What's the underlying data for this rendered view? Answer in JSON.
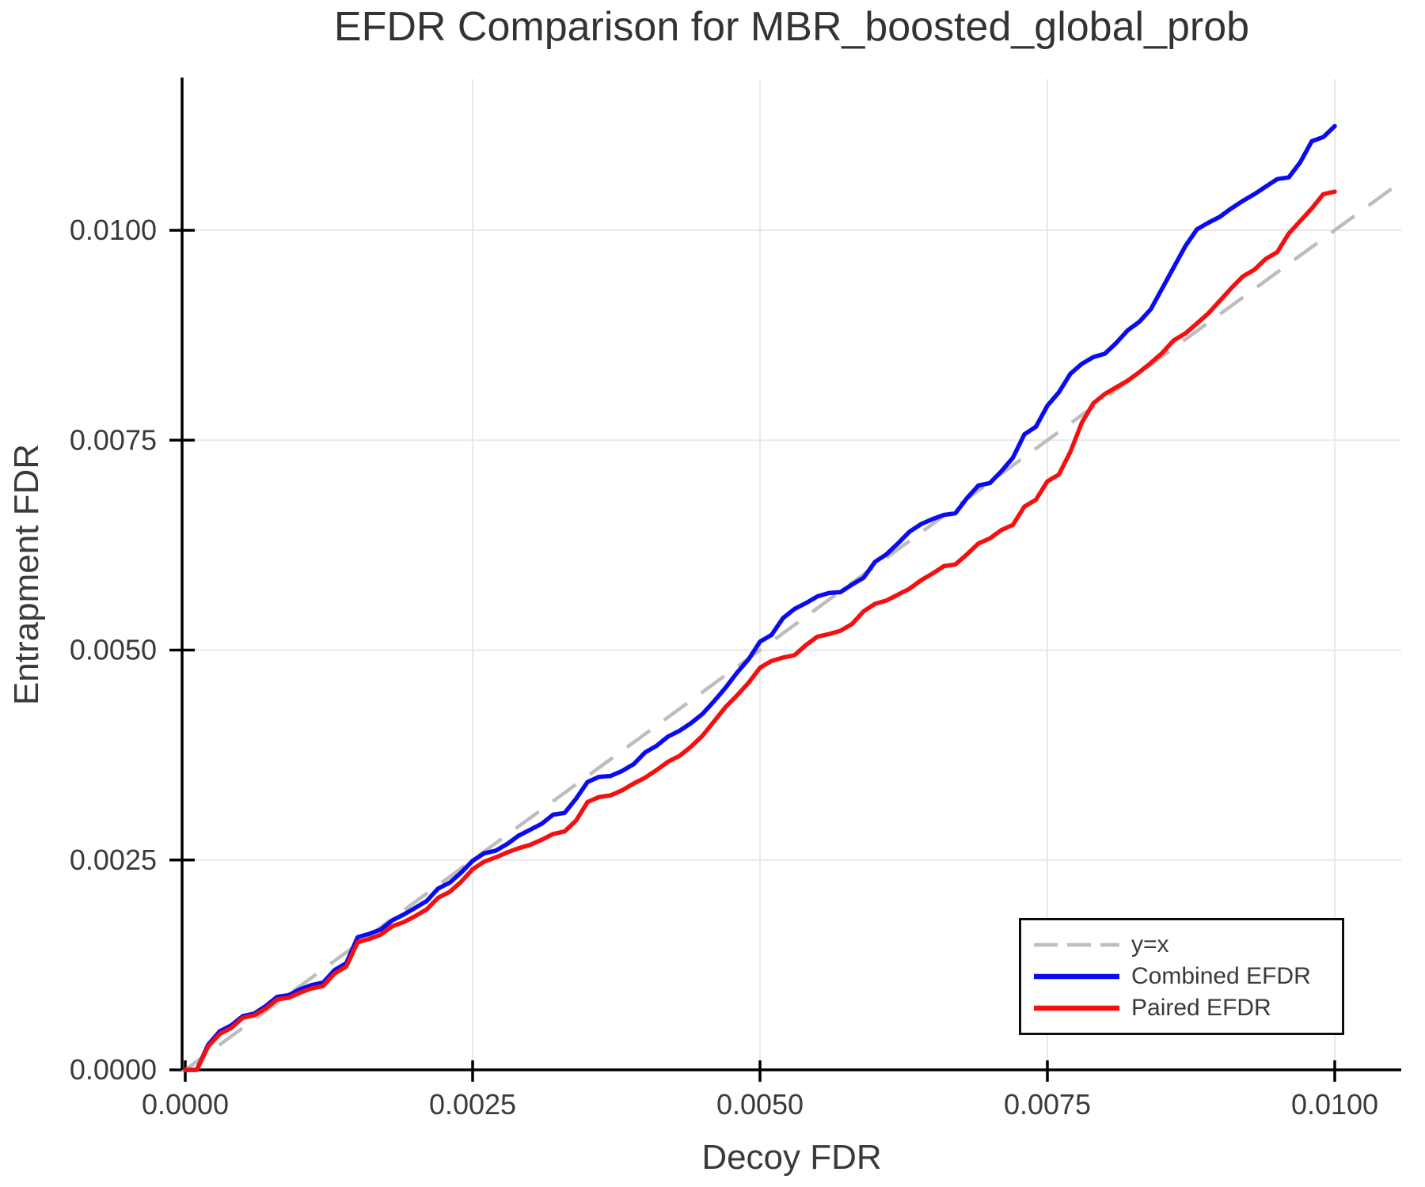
{
  "chart_data": {
    "type": "line",
    "title": "EFDR Comparison for MBR_boosted_global_prob",
    "xlabel": "Decoy FDR",
    "ylabel": "Entrapment FDR",
    "xlim": [
      -2.75e-05,
      0.010578
    ],
    "ylim": [
      0,
      0.0118
    ],
    "grid": true,
    "colors": {
      "grid": "#e8e8e8",
      "axis": "#000000",
      "text": "#3a3a3a",
      "background": "#ffffff"
    },
    "x_ticks": {
      "values": [
        0,
        0.0025,
        0.005,
        0.0075,
        0.01
      ],
      "labels": [
        "0.0000",
        "0.0025",
        "0.0050",
        "0.0075",
        "0.0100"
      ]
    },
    "y_ticks": {
      "values": [
        0,
        0.0025,
        0.005,
        0.0075,
        0.01
      ],
      "labels": [
        "0.0000",
        "0.0025",
        "0.0050",
        "0.0075",
        "0.0100"
      ]
    },
    "legend": {
      "position": "bottom-right",
      "entries": [
        {
          "label": "y=x",
          "color": "#bdbdbd",
          "dash": true
        },
        {
          "label": "Combined EFDR",
          "color": "#0b0bf2",
          "dash": false
        },
        {
          "label": "Paired EFDR",
          "color": "#f50f0f",
          "dash": false
        }
      ]
    },
    "reference_line": {
      "label": "y=x",
      "color": "#bdbdbd",
      "dash": true,
      "x1": -2.75e-05,
      "y1": -2.75e-05,
      "x2": 0.010578,
      "y2": 0.010578
    },
    "series": [
      {
        "name": "Combined EFDR",
        "color": "#0b0bf2",
        "x": [
          0,
          0.0001,
          0.0002,
          0.0003,
          0.0004,
          0.0005,
          0.0006,
          0.0007,
          0.0008,
          0.0009,
          0.001,
          0.0011,
          0.0012,
          0.0013,
          0.0014,
          0.0015,
          0.0016,
          0.0017,
          0.0018,
          0.0019,
          0.002,
          0.0021,
          0.0022,
          0.0023,
          0.0024,
          0.0025,
          0.0026,
          0.0027,
          0.0028,
          0.0029,
          0.003,
          0.0031,
          0.0032,
          0.0033,
          0.0034,
          0.0035,
          0.0036,
          0.0037,
          0.0038,
          0.0039,
          0.004,
          0.0041,
          0.0042,
          0.0043,
          0.0044,
          0.0045,
          0.0046,
          0.0047,
          0.0048,
          0.0049,
          0.005,
          0.0051,
          0.0052,
          0.0053,
          0.0054,
          0.0055,
          0.0056,
          0.0057,
          0.0058,
          0.0059,
          0.006,
          0.0061,
          0.0062,
          0.0063,
          0.0064,
          0.0065,
          0.0066,
          0.0067,
          0.0068,
          0.0069,
          0.007,
          0.0071,
          0.0072,
          0.0073,
          0.0074,
          0.0075,
          0.0076,
          0.0077,
          0.0078,
          0.0079,
          0.008,
          0.0081,
          0.0082,
          0.0083,
          0.0084,
          0.0085,
          0.0086,
          0.0087,
          0.0088,
          0.0089,
          0.009,
          0.0091,
          0.0092,
          0.0093,
          0.0094,
          0.0095,
          0.0096,
          0.0097,
          0.0098,
          0.0099,
          0.01
        ],
        "y": [
          0,
          0,
          0.0003,
          0.00046,
          0.00053,
          0.00064,
          0.00067,
          0.00076,
          0.00087,
          0.00089,
          0.00096,
          0.00101,
          0.00104,
          0.00119,
          0.00127,
          0.00158,
          0.00162,
          0.00167,
          0.00178,
          0.00185,
          0.00193,
          0.00201,
          0.00216,
          0.00223,
          0.00235,
          0.00249,
          0.00258,
          0.00261,
          0.00269,
          0.00279,
          0.00286,
          0.00293,
          0.00304,
          0.00306,
          0.00323,
          0.00343,
          0.00349,
          0.0035,
          0.00356,
          0.00364,
          0.00378,
          0.00386,
          0.00397,
          0.00404,
          0.00413,
          0.00424,
          0.00439,
          0.00455,
          0.00473,
          0.00489,
          0.0051,
          0.00518,
          0.00538,
          0.00549,
          0.00556,
          0.00564,
          0.00568,
          0.00569,
          0.00578,
          0.00586,
          0.00605,
          0.00614,
          0.00627,
          0.00641,
          0.0065,
          0.00656,
          0.00661,
          0.00663,
          0.00681,
          0.00696,
          0.00699,
          0.00713,
          0.00729,
          0.00757,
          0.00766,
          0.00791,
          0.00807,
          0.00829,
          0.00841,
          0.00849,
          0.00853,
          0.00866,
          0.00881,
          0.00891,
          0.00906,
          0.00931,
          0.00956,
          0.00981,
          0.01001,
          0.01009,
          0.01016,
          0.01026,
          0.01035,
          0.01043,
          0.01052,
          0.01061,
          0.01063,
          0.01081,
          0.01106,
          0.01111,
          0.01124
        ]
      },
      {
        "name": "Paired EFDR",
        "color": "#f50f0f",
        "x": [
          0,
          0.0001,
          0.0002,
          0.0003,
          0.0004,
          0.0005,
          0.0006,
          0.0007,
          0.0008,
          0.0009,
          0.001,
          0.0011,
          0.0012,
          0.0013,
          0.0014,
          0.0015,
          0.0016,
          0.0017,
          0.0018,
          0.0019,
          0.002,
          0.0021,
          0.0022,
          0.0023,
          0.0024,
          0.0025,
          0.0026,
          0.0027,
          0.0028,
          0.0029,
          0.003,
          0.0031,
          0.0032,
          0.0033,
          0.0034,
          0.0035,
          0.0036,
          0.0037,
          0.0038,
          0.0039,
          0.004,
          0.0041,
          0.0042,
          0.0043,
          0.0044,
          0.0045,
          0.0046,
          0.0047,
          0.0048,
          0.0049,
          0.005,
          0.0051,
          0.0052,
          0.0053,
          0.0054,
          0.0055,
          0.0056,
          0.0057,
          0.0058,
          0.0059,
          0.006,
          0.0061,
          0.0062,
          0.0063,
          0.0064,
          0.0065,
          0.0066,
          0.0067,
          0.0068,
          0.0069,
          0.007,
          0.0071,
          0.0072,
          0.0073,
          0.0074,
          0.0075,
          0.0076,
          0.0077,
          0.0078,
          0.0079,
          0.008,
          0.0081,
          0.0082,
          0.0083,
          0.0084,
          0.0085,
          0.0086,
          0.0087,
          0.0088,
          0.0089,
          0.009,
          0.0091,
          0.0092,
          0.0093,
          0.0094,
          0.0095,
          0.0096,
          0.0097,
          0.0098,
          0.0099,
          0.01
        ],
        "y": [
          0,
          0,
          0.00028,
          0.00043,
          0.0005,
          0.00062,
          0.00065,
          0.00073,
          0.00084,
          0.00086,
          0.00092,
          0.00097,
          0.001,
          0.00115,
          0.00123,
          0.00152,
          0.00156,
          0.00161,
          0.00171,
          0.00176,
          0.00183,
          0.00191,
          0.00205,
          0.00212,
          0.00224,
          0.00239,
          0.00248,
          0.00253,
          0.00259,
          0.00264,
          0.00268,
          0.00274,
          0.00281,
          0.00284,
          0.00297,
          0.00319,
          0.00325,
          0.00327,
          0.00333,
          0.00341,
          0.00348,
          0.00357,
          0.00367,
          0.00374,
          0.00385,
          0.00398,
          0.00415,
          0.00432,
          0.00446,
          0.00461,
          0.00479,
          0.00487,
          0.00491,
          0.00494,
          0.00506,
          0.00516,
          0.00519,
          0.00523,
          0.00531,
          0.00546,
          0.00555,
          0.00559,
          0.00566,
          0.00573,
          0.00583,
          0.00591,
          0.006,
          0.00602,
          0.00614,
          0.00627,
          0.00633,
          0.00643,
          0.00649,
          0.00671,
          0.00679,
          0.00701,
          0.00709,
          0.00736,
          0.00771,
          0.00794,
          0.00805,
          0.00813,
          0.00821,
          0.00831,
          0.00842,
          0.00854,
          0.00869,
          0.00877,
          0.00889,
          0.00901,
          0.00916,
          0.00931,
          0.00945,
          0.00953,
          0.00966,
          0.00974,
          0.00996,
          0.01011,
          0.01026,
          0.01043,
          0.01046
        ]
      }
    ]
  }
}
